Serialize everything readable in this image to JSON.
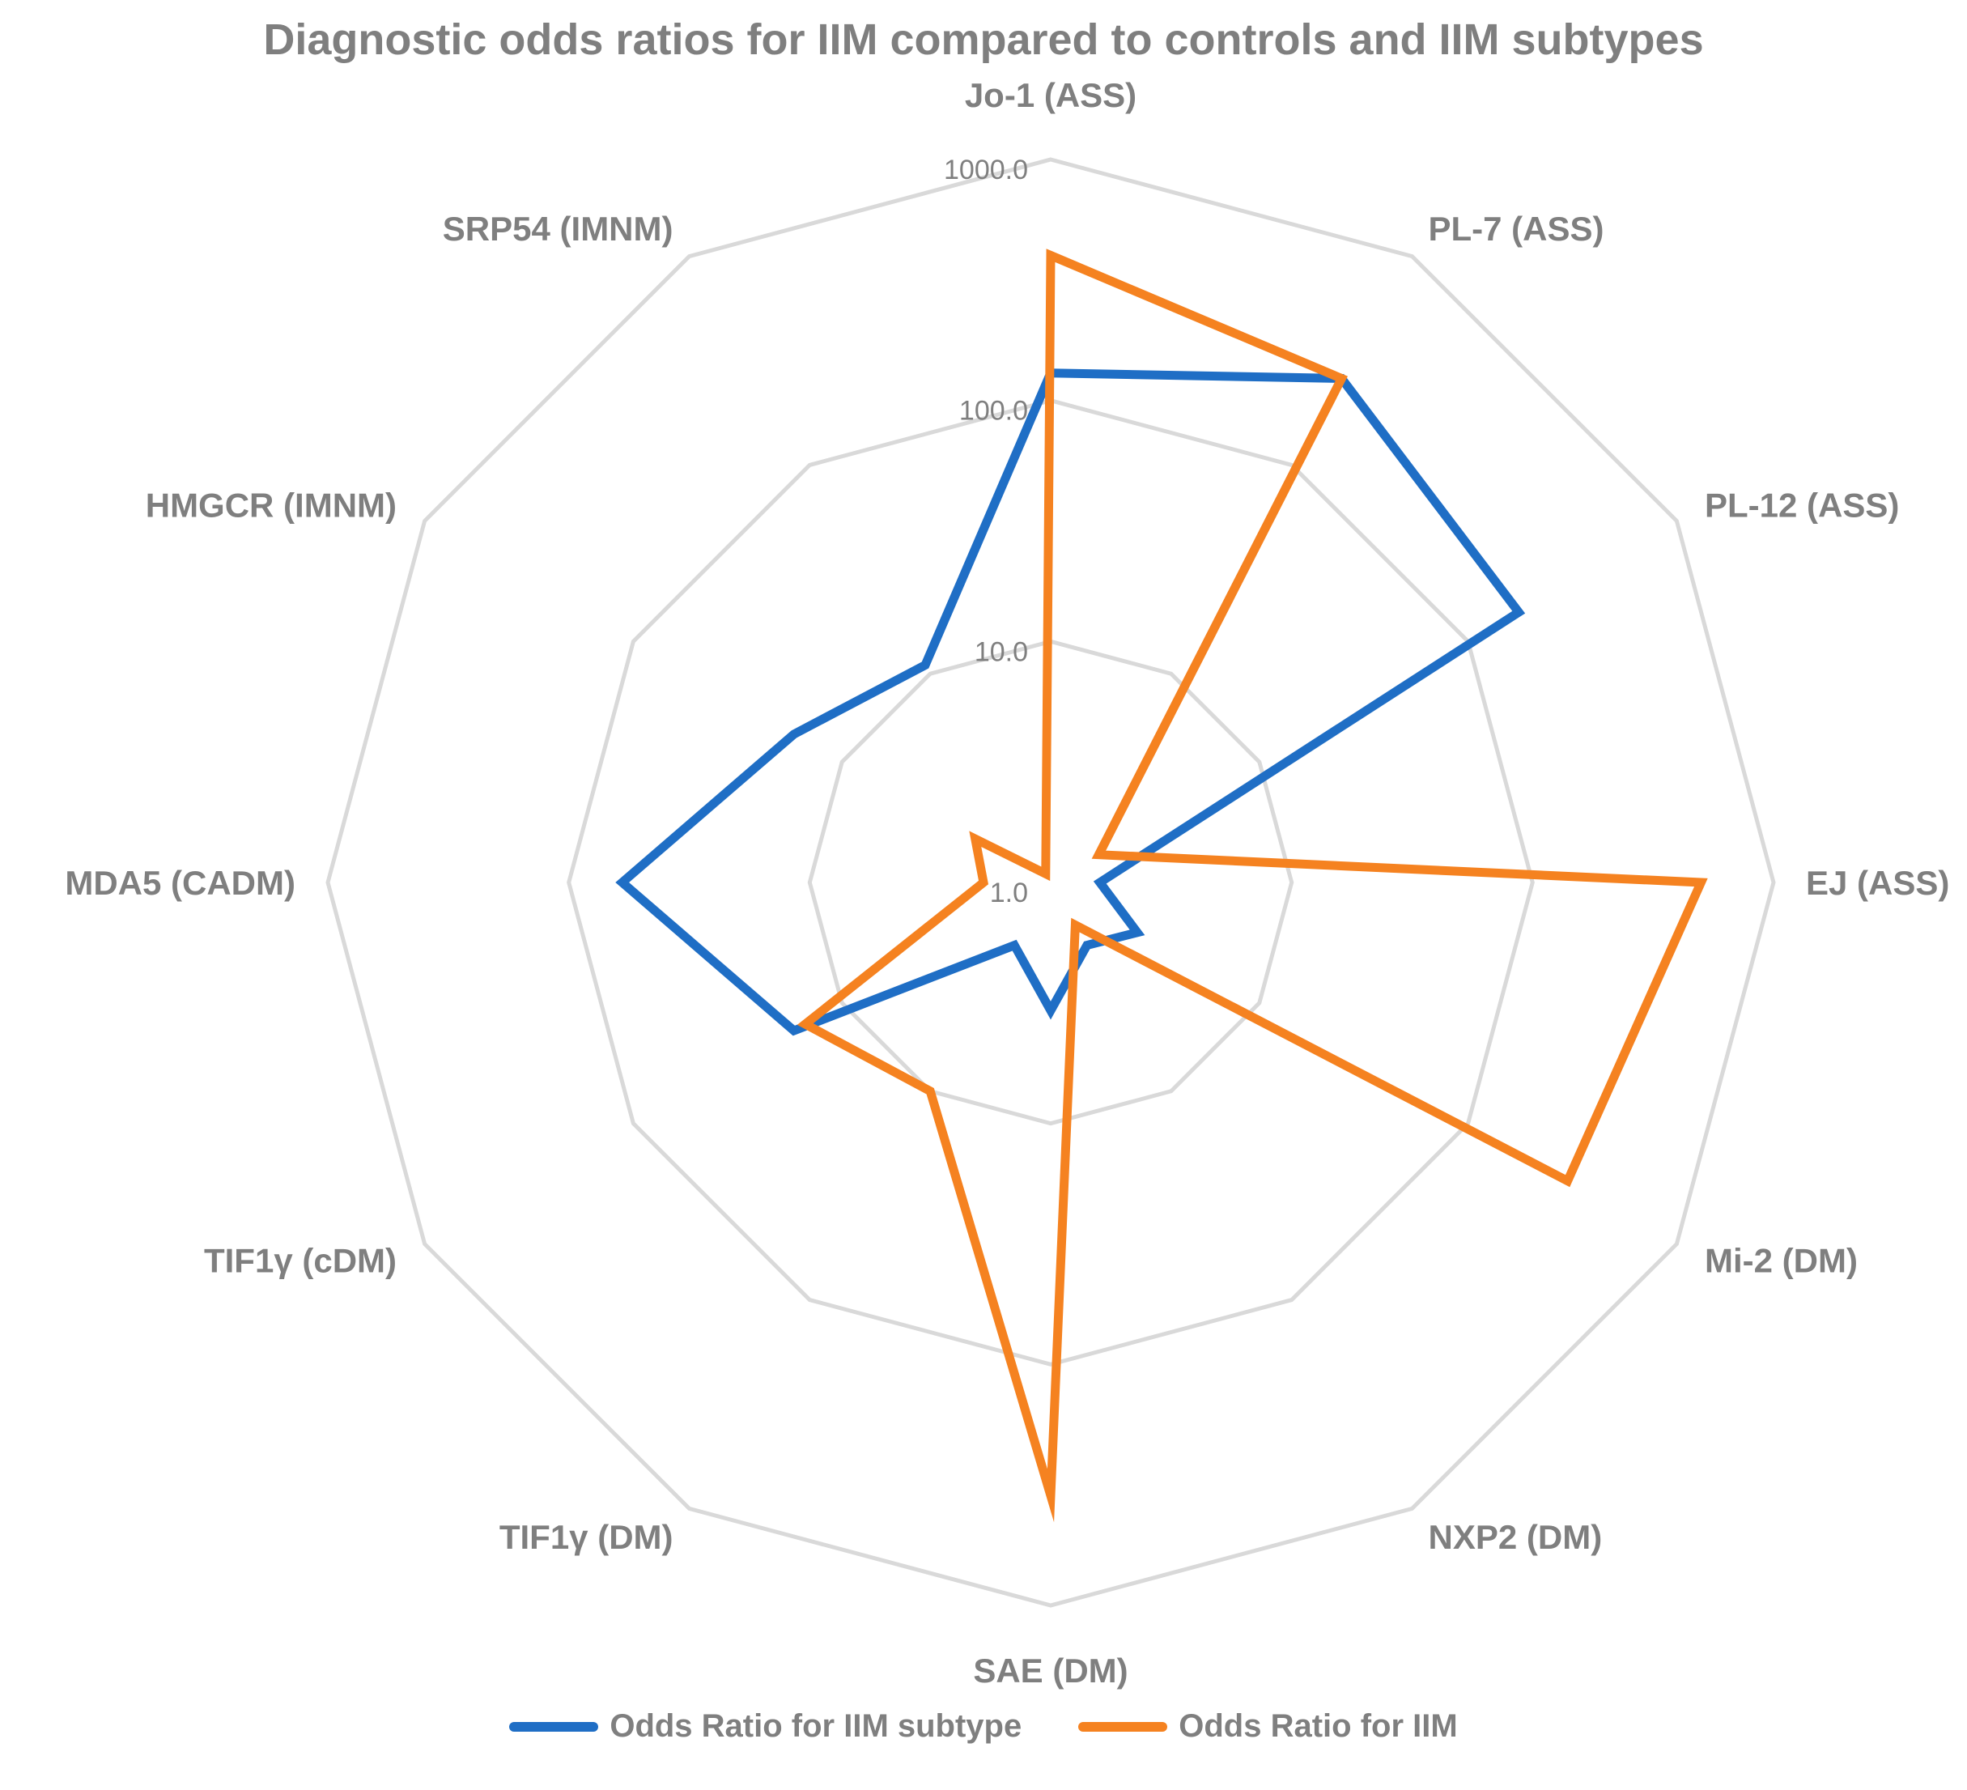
{
  "chart_data": {
    "type": "radar",
    "title": "Diagnostic odds ratios for IIM compared to controls and IIM subtypes",
    "scale": "log",
    "rlim": [
      1,
      1000
    ],
    "ticks": [
      1,
      10,
      100,
      1000
    ],
    "tick_labels": [
      "1.0",
      "10.0",
      "100.0",
      "1000.0"
    ],
    "categories": [
      "Jo-1 (ASS)",
      "PL-7 (ASS)",
      "PL-12 (ASS)",
      "EJ (ASS)",
      "Mi-2 (DM)",
      "NXP2 (DM)",
      "SAE (DM)",
      "TIF1γ  (DM)",
      "TIF1γ  (cDM)",
      "MDA5 (CADM)",
      "HMGCR (IMNM)",
      "SRP54 (IMNM)"
    ],
    "series": [
      {
        "name": "Odds Ratio for IIM subtype",
        "color": "#1f6ec5",
        "values": [
          130,
          260,
          175,
          1.6,
          2.6,
          2.0,
          3.4,
          2.0,
          17,
          60,
          17,
          11
        ]
      },
      {
        "name": "Odds Ratio for IIM",
        "color": "#f58220",
        "values": [
          400,
          260,
          1.7,
          500,
          300,
          1.6,
          350,
          10,
          15,
          1.9,
          2.3,
          1.1
        ]
      }
    ],
    "grid": true,
    "legend": "bottom"
  }
}
